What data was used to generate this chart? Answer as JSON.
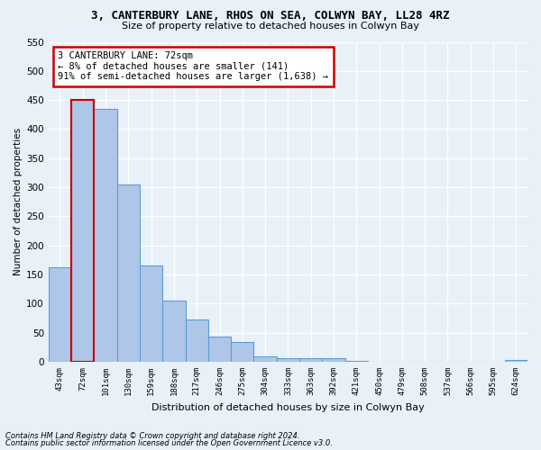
{
  "title1": "3, CANTERBURY LANE, RHOS ON SEA, COLWYN BAY, LL28 4RZ",
  "title2": "Size of property relative to detached houses in Colwyn Bay",
  "xlabel": "Distribution of detached houses by size in Colwyn Bay",
  "ylabel": "Number of detached properties",
  "footer1": "Contains HM Land Registry data © Crown copyright and database right 2024.",
  "footer2": "Contains public sector information licensed under the Open Government Licence v3.0.",
  "annotation_line1": "3 CANTERBURY LANE: 72sqm",
  "annotation_line2": "← 8% of detached houses are smaller (141)",
  "annotation_line3": "91% of semi-detached houses are larger (1,638) →",
  "categories": [
    "43sqm",
    "72sqm",
    "101sqm",
    "130sqm",
    "159sqm",
    "188sqm",
    "217sqm",
    "246sqm",
    "275sqm",
    "304sqm",
    "333sqm",
    "363sqm",
    "392sqm",
    "421sqm",
    "450sqm",
    "479sqm",
    "508sqm",
    "537sqm",
    "566sqm",
    "595sqm",
    "624sqm"
  ],
  "values": [
    163,
    450,
    435,
    305,
    165,
    105,
    73,
    44,
    34,
    9,
    7,
    6,
    7,
    1,
    0,
    0,
    0,
    0,
    0,
    0,
    3
  ],
  "bar_color": "#aec6e8",
  "bar_edge_color": "#5a9fd4",
  "highlight_bar_index": 1,
  "highlight_edge_color": "#cc0000",
  "annotation_box_color": "#ffffff",
  "annotation_box_edge": "#cc0000",
  "bg_color": "#e8f0f8",
  "plot_bg_color": "#e8f0f8",
  "grid_color": "#ffffff",
  "ylim": [
    0,
    550
  ],
  "yticks": [
    0,
    50,
    100,
    150,
    200,
    250,
    300,
    350,
    400,
    450,
    500,
    550
  ]
}
